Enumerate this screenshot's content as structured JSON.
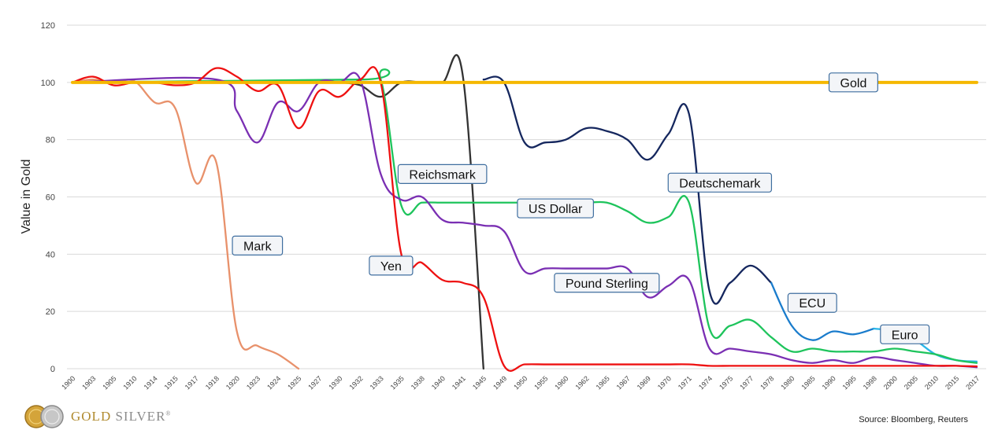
{
  "chart_data": {
    "type": "line",
    "ylabel": "Value in Gold",
    "ylim": [
      0,
      120
    ],
    "yticks": [
      0,
      20,
      40,
      60,
      80,
      100,
      120
    ],
    "categories": [
      "1900",
      "1903",
      "1905",
      "1910",
      "1914",
      "1915",
      "1917",
      "1918",
      "1920",
      "1923",
      "1924",
      "1925",
      "1927",
      "1930",
      "1932",
      "1933",
      "1935",
      "1938",
      "1940",
      "1941",
      "1945",
      "1949",
      "1950",
      "1955",
      "1960",
      "1962",
      "1965",
      "1967",
      "1969",
      "1970",
      "1971",
      "1974",
      "1975",
      "1977",
      "1978",
      "1980",
      "1985",
      "1990",
      "1995",
      "1998",
      "2000",
      "2005",
      "2010",
      "2015",
      "2017"
    ],
    "grid": true,
    "series": [
      {
        "name": "Gold",
        "color": "#f5b800",
        "values": [
          [
            0,
            100
          ],
          [
            44,
            100
          ]
        ]
      },
      {
        "name": "Mark",
        "color": "#e8916b",
        "values": [
          [
            0,
            100
          ],
          [
            1,
            101
          ],
          [
            2,
            100
          ],
          [
            3,
            100.5
          ],
          [
            4,
            93
          ],
          [
            5,
            91
          ],
          [
            6,
            65
          ],
          [
            7,
            72
          ],
          [
            8,
            13
          ],
          [
            9,
            8
          ],
          [
            10,
            5
          ],
          [
            11,
            0
          ]
        ]
      },
      {
        "name": "Reichsmark",
        "color": "#333333",
        "values": [
          [
            13,
            100
          ],
          [
            14,
            99
          ],
          [
            15,
            95
          ],
          [
            16,
            100
          ],
          [
            17,
            100
          ],
          [
            18,
            100
          ],
          [
            19,
            102
          ],
          [
            20,
            0
          ]
        ]
      },
      {
        "name": "Deutschemark",
        "color": "#15275e",
        "values": [
          [
            20,
            101
          ],
          [
            21,
            100
          ],
          [
            22,
            79
          ],
          [
            23,
            79
          ],
          [
            24,
            80
          ],
          [
            25,
            84
          ],
          [
            26,
            83
          ],
          [
            27,
            80
          ],
          [
            28,
            73
          ],
          [
            29,
            82
          ],
          [
            30,
            89
          ],
          [
            31,
            27
          ],
          [
            32,
            30
          ],
          [
            33,
            36
          ],
          [
            34,
            30
          ]
        ]
      },
      {
        "name": "ECU",
        "color": "#1a7ccc",
        "values": [
          [
            34,
            30
          ],
          [
            35,
            15
          ],
          [
            36,
            10
          ],
          [
            37,
            13
          ],
          [
            38,
            12
          ],
          [
            39,
            14
          ]
        ]
      },
      {
        "name": "Euro",
        "color": "#29b5e8",
        "values": [
          [
            39,
            14
          ],
          [
            40,
            13
          ],
          [
            41,
            10
          ],
          [
            42,
            5
          ],
          [
            43,
            3
          ],
          [
            44,
            2.5
          ]
        ]
      },
      {
        "name": "US Dollar",
        "color": "#1ec45c",
        "values": [
          [
            0,
            100
          ],
          [
            14,
            101
          ],
          [
            15,
            101
          ],
          [
            16,
            57
          ],
          [
            17,
            58
          ],
          [
            18,
            58
          ],
          [
            19,
            58
          ],
          [
            20,
            58
          ],
          [
            21,
            58
          ],
          [
            22,
            58
          ],
          [
            23,
            58
          ],
          [
            24,
            58
          ],
          [
            25,
            58
          ],
          [
            26,
            58
          ],
          [
            27,
            55
          ],
          [
            28,
            51
          ],
          [
            29,
            53
          ],
          [
            30,
            58
          ],
          [
            31,
            14
          ],
          [
            32,
            15
          ],
          [
            33,
            17
          ],
          [
            34,
            11
          ],
          [
            35,
            6
          ],
          [
            36,
            7
          ],
          [
            37,
            6
          ],
          [
            38,
            6
          ],
          [
            39,
            6
          ],
          [
            40,
            7
          ],
          [
            41,
            6
          ],
          [
            42,
            5
          ],
          [
            43,
            3
          ],
          [
            44,
            2
          ]
        ]
      },
      {
        "name": "Pound Sterling",
        "color": "#7a2fb3",
        "values": [
          [
            0,
            100
          ],
          [
            7,
            101
          ],
          [
            8,
            90
          ],
          [
            9,
            79
          ],
          [
            10,
            93
          ],
          [
            11,
            90
          ],
          [
            12,
            100
          ],
          [
            13,
            100
          ],
          [
            14,
            101
          ],
          [
            15,
            68
          ],
          [
            16,
            59
          ],
          [
            17,
            60
          ],
          [
            18,
            52
          ],
          [
            19,
            51
          ],
          [
            20,
            50
          ],
          [
            21,
            48
          ],
          [
            22,
            34
          ],
          [
            23,
            35
          ],
          [
            24,
            35
          ],
          [
            25,
            35
          ],
          [
            26,
            35
          ],
          [
            27,
            35
          ],
          [
            28,
            25
          ],
          [
            29,
            29
          ],
          [
            30,
            31
          ],
          [
            31,
            7
          ],
          [
            32,
            7
          ],
          [
            33,
            6
          ],
          [
            34,
            5
          ],
          [
            35,
            3
          ],
          [
            36,
            2
          ],
          [
            37,
            3
          ],
          [
            38,
            2
          ],
          [
            39,
            4
          ],
          [
            40,
            3
          ],
          [
            41,
            2
          ],
          [
            42,
            1
          ],
          [
            43,
            1
          ],
          [
            44,
            0.5
          ]
        ]
      },
      {
        "name": "Yen",
        "color": "#ee1111",
        "values": [
          [
            0,
            100
          ],
          [
            1,
            102
          ],
          [
            2,
            99
          ],
          [
            3,
            100
          ],
          [
            4,
            100
          ],
          [
            5,
            99
          ],
          [
            6,
            100
          ],
          [
            7,
            105
          ],
          [
            8,
            102
          ],
          [
            9,
            97
          ],
          [
            10,
            99
          ],
          [
            11,
            84
          ],
          [
            12,
            97
          ],
          [
            13,
            95
          ],
          [
            14,
            101
          ],
          [
            15,
            100
          ],
          [
            16,
            40
          ],
          [
            17,
            37
          ],
          [
            18,
            31
          ],
          [
            19,
            30
          ],
          [
            20,
            25
          ],
          [
            21,
            1
          ],
          [
            22,
            1.5
          ],
          [
            23,
            1.5
          ],
          [
            24,
            1.5
          ],
          [
            25,
            1.5
          ],
          [
            26,
            1.5
          ],
          [
            27,
            1.5
          ],
          [
            28,
            1.5
          ],
          [
            29,
            1.5
          ],
          [
            30,
            1.5
          ],
          [
            31,
            1
          ],
          [
            32,
            1
          ],
          [
            33,
            1
          ],
          [
            34,
            1
          ],
          [
            35,
            1
          ],
          [
            36,
            1
          ],
          [
            37,
            1
          ],
          [
            38,
            1
          ],
          [
            39,
            1
          ],
          [
            40,
            1
          ],
          [
            41,
            1
          ],
          [
            42,
            1
          ],
          [
            43,
            1
          ],
          [
            44,
            0.8
          ]
        ]
      }
    ],
    "annotations": [
      {
        "text": "Gold",
        "x": 38.0,
        "y": 100
      },
      {
        "text": "Mark",
        "x": 9.0,
        "y": 43
      },
      {
        "text": "Reichsmark",
        "x": 18.0,
        "y": 68
      },
      {
        "text": "Deutschemark",
        "x": 31.5,
        "y": 65
      },
      {
        "text": "US Dollar",
        "x": 23.5,
        "y": 56
      },
      {
        "text": "Yen",
        "x": 15.5,
        "y": 36
      },
      {
        "text": "Pound Sterling",
        "x": 26.0,
        "y": 30
      },
      {
        "text": "ECU",
        "x": 36.0,
        "y": 23
      },
      {
        "text": "Euro",
        "x": 40.5,
        "y": 12
      }
    ]
  },
  "branding": {
    "logo_gold": "GOLD",
    "logo_silver": "SILVER",
    "logo_mark": "®",
    "source": "Source: Bloomberg, Reuters"
  }
}
